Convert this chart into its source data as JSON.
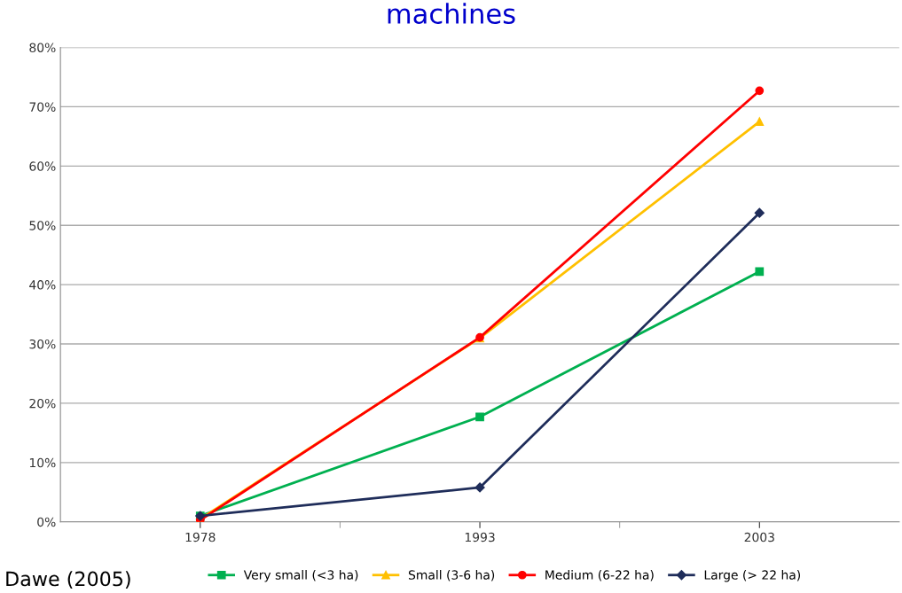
{
  "chart_data": {
    "type": "line",
    "title": "machines",
    "categories": [
      "1978",
      "1993",
      "2003"
    ],
    "series": [
      {
        "name": "Very small (<3 ha)",
        "color": "#00b050",
        "marker": "square",
        "values": [
          1.0,
          17.7,
          42.2
        ]
      },
      {
        "name": "Small (3-6 ha)",
        "color": "#ffc000",
        "marker": "triangle",
        "values": [
          0.5,
          31.0,
          67.5
        ]
      },
      {
        "name": "Medium (6-22 ha)",
        "color": "#ff0000",
        "marker": "circle",
        "values": [
          0.3,
          31.1,
          72.7
        ]
      },
      {
        "name": "Large (> 22 ha)",
        "color": "#1f2d5a",
        "marker": "diamond",
        "values": [
          1.0,
          5.8,
          52.1
        ]
      }
    ],
    "ylim": [
      0,
      80
    ],
    "yticks": [
      {
        "value": 0,
        "label": "0%"
      },
      {
        "value": 10,
        "label": "10%"
      },
      {
        "value": 20,
        "label": "20%"
      },
      {
        "value": 30,
        "label": "30%"
      },
      {
        "value": 40,
        "label": "40%"
      },
      {
        "value": 50,
        "label": "50%"
      },
      {
        "value": 60,
        "label": "60%"
      },
      {
        "value": 70,
        "label": "70%"
      },
      {
        "value": 80,
        "label": "80%"
      }
    ],
    "grid": "y",
    "legend": "bottom",
    "line_style": "solid",
    "annotations": [
      "Dawe (2005)"
    ]
  }
}
